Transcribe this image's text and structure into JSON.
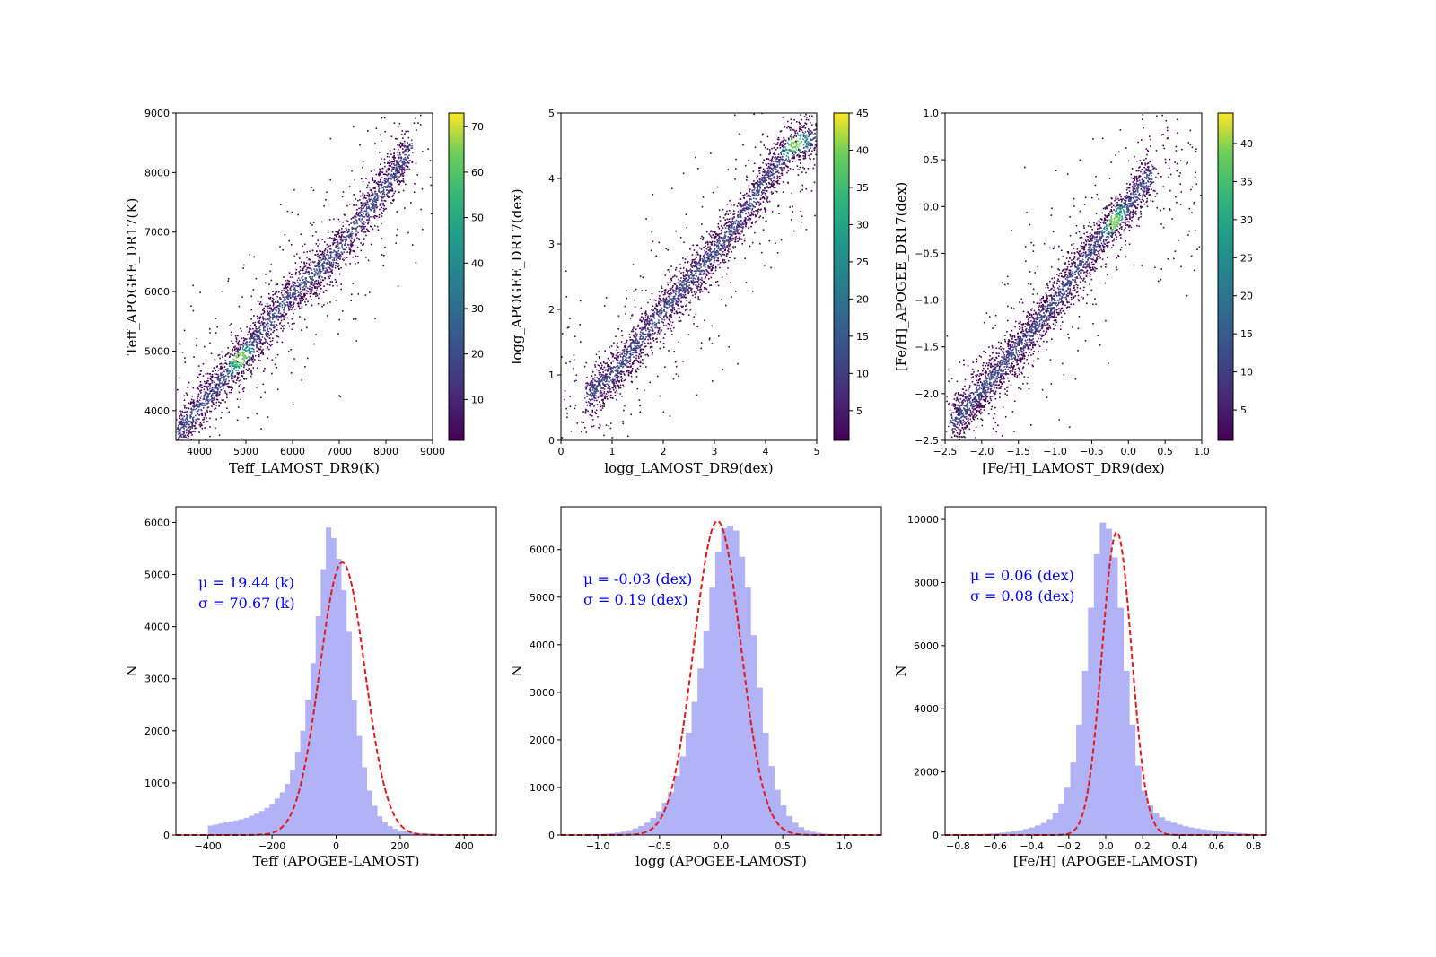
{
  "chart_data": [
    {
      "type": "scatter",
      "subtype": "density-colored scatter (2D histogram)",
      "xlabel": "Teff_LAMOST_DR9(K)",
      "ylabel": "Teff_APOGEE_DR17(K)",
      "xlim": [
        3500,
        9000
      ],
      "ylim": [
        3500,
        9000
      ],
      "xticks": [
        4000,
        5000,
        6000,
        7000,
        8000,
        9000
      ],
      "yticks": [
        4000,
        5000,
        6000,
        7000,
        8000,
        9000
      ],
      "colormap": "viridis",
      "colorbar_range": [
        1,
        73
      ],
      "colorbar_ticks": [
        10,
        20,
        30,
        40,
        50,
        60,
        70
      ],
      "ridge": {
        "x": [
          3500,
          4500,
          5000,
          5500,
          6000,
          6500,
          7000,
          7500,
          8000,
          8500
        ],
        "y": [
          3600,
          4550,
          5000,
          5500,
          6000,
          6350,
          6700,
          7300,
          7800,
          8400
        ]
      },
      "density_peak": {
        "x": 4850,
        "y": 4900
      },
      "grid": false
    },
    {
      "type": "scatter",
      "subtype": "density-colored scatter (2D histogram)",
      "xlabel": "logg_LAMOST_DR9(dex)",
      "ylabel": "logg_APOGEE_DR17(dex)",
      "xlim": [
        0,
        5
      ],
      "ylim": [
        0,
        5
      ],
      "xticks": [
        0,
        1,
        2,
        3,
        4,
        5
      ],
      "yticks": [
        0,
        1,
        2,
        3,
        4,
        5
      ],
      "colormap": "viridis",
      "colorbar_range": [
        1,
        45
      ],
      "colorbar_ticks": [
        5,
        10,
        15,
        20,
        25,
        30,
        35,
        40,
        45
      ],
      "ridge": {
        "x": [
          0.5,
          1.0,
          1.5,
          2.0,
          2.5,
          3.0,
          3.5,
          4.0,
          4.5,
          5.0
        ],
        "y": [
          0.7,
          1.0,
          1.5,
          2.0,
          2.45,
          2.9,
          3.4,
          4.0,
          4.5,
          4.65
        ]
      },
      "density_peak": {
        "x": 4.55,
        "y": 4.55
      },
      "grid": false
    },
    {
      "type": "scatter",
      "subtype": "density-colored scatter (2D histogram)",
      "xlabel": "[Fe/H]_LAMOST_DR9(dex)",
      "ylabel": "[Fe/H]_APOGEE_DR17(dex)",
      "xlim": [
        -2.5,
        1.0
      ],
      "ylim": [
        -2.5,
        1.0
      ],
      "xticks": [
        -2.5,
        -2.0,
        -1.5,
        -1.0,
        -0.5,
        0.0,
        0.5,
        1.0
      ],
      "yticks": [
        -2.5,
        -2.0,
        -1.5,
        -1.0,
        -0.5,
        0.0,
        0.5,
        1.0
      ],
      "xticklabels": [
        "−2.5",
        "−2.0",
        "−1.5",
        "−1.0",
        "−0.5",
        "0.0",
        "0.5",
        "1.0"
      ],
      "yticklabels": [
        "−2.5",
        "−2.0",
        "−1.5",
        "−1.0",
        "−0.5",
        "0.0",
        "0.5",
        "1.0"
      ],
      "colormap": "viridis",
      "colorbar_range": [
        1,
        44
      ],
      "colorbar_ticks": [
        5,
        10,
        15,
        20,
        25,
        30,
        35,
        40
      ],
      "ridge": {
        "x": [
          -2.4,
          -2.0,
          -1.5,
          -1.0,
          -0.5,
          0.0,
          0.3
        ],
        "y": [
          -2.3,
          -1.95,
          -1.5,
          -1.0,
          -0.45,
          0.05,
          0.35
        ]
      },
      "density_peak": {
        "x": -0.2,
        "y": -0.15
      },
      "grid": false
    },
    {
      "type": "bar",
      "subtype": "histogram with gaussian fit",
      "xlabel": "Teff (APOGEE-LAMOST)",
      "ylabel": "N",
      "xlim": [
        -500,
        500
      ],
      "ylim": [
        0,
        6300
      ],
      "xticks": [
        -400,
        -200,
        0,
        200,
        400
      ],
      "yticks": [
        0,
        1000,
        2000,
        3000,
        4000,
        5000,
        6000
      ],
      "xticklabels": [
        "−400",
        "−200",
        "0",
        "200",
        "400"
      ],
      "bin_range": [
        -400,
        400
      ],
      "bins": 50,
      "values": [
        180,
        200,
        220,
        240,
        260,
        280,
        300,
        330,
        370,
        410,
        460,
        520,
        600,
        700,
        820,
        980,
        1250,
        1600,
        2000,
        2600,
        3300,
        4200,
        5100,
        5900,
        5700,
        5300,
        4700,
        3900,
        2600,
        1900,
        1300,
        850,
        560,
        360,
        240,
        170,
        120,
        90,
        70,
        55,
        45,
        38,
        32,
        27,
        23,
        20,
        17,
        15,
        13,
        11
      ],
      "fit": {
        "mu": 19.44,
        "sigma": 70.67,
        "peak": 5230
      },
      "annotation": [
        "μ = 19.44 (k)",
        "σ = 70.67 (k)"
      ],
      "grid": false
    },
    {
      "type": "bar",
      "subtype": "histogram with gaussian fit",
      "xlabel": "logg (APOGEE-LAMOST)",
      "ylabel": "N",
      "xlim": [
        -1.3,
        1.3
      ],
      "ylim": [
        0,
        6900
      ],
      "xticks": [
        -1.0,
        -0.5,
        0.0,
        0.5,
        1.0
      ],
      "yticks": [
        0,
        1000,
        2000,
        3000,
        4000,
        5000,
        6000
      ],
      "xticklabels": [
        "−1.0",
        "−0.5",
        "0.0",
        "0.5",
        "1.0"
      ],
      "bin_range": [
        -1.2,
        1.2
      ],
      "bins": 50,
      "values": [
        10,
        12,
        15,
        18,
        22,
        28,
        38,
        50,
        70,
        100,
        140,
        190,
        260,
        360,
        500,
        680,
        900,
        1250,
        1650,
        2150,
        2800,
        3500,
        4300,
        5200,
        5950,
        6450,
        6500,
        6400,
        5850,
        5200,
        4200,
        3100,
        2150,
        1450,
        950,
        620,
        400,
        260,
        165,
        105,
        70,
        48,
        33,
        24,
        18,
        14,
        11,
        9,
        7,
        5
      ],
      "fit": {
        "mu": -0.03,
        "sigma": 0.19,
        "peak": 6600
      },
      "annotation": [
        "μ = -0.03 (dex)",
        "σ = 0.19 (dex)"
      ],
      "grid": false
    },
    {
      "type": "bar",
      "subtype": "histogram with gaussian fit",
      "xlabel": "[Fe/H] (APOGEE-LAMOST)",
      "ylabel": "N",
      "xlim": [
        -0.87,
        0.87
      ],
      "ylim": [
        0,
        10400
      ],
      "xticks": [
        -0.8,
        -0.6,
        -0.4,
        -0.2,
        0.0,
        0.2,
        0.4,
        0.6,
        0.8
      ],
      "yticks": [
        0,
        2000,
        4000,
        6000,
        8000,
        10000
      ],
      "xticklabels": [
        "−0.8",
        "−0.6",
        "−0.4",
        "−0.2",
        "0.0",
        "0.2",
        "0.4",
        "0.6",
        "0.8"
      ],
      "bin_range": [
        -0.8,
        0.8
      ],
      "bins": 50,
      "values": [
        15,
        20,
        25,
        30,
        40,
        50,
        60,
        75,
        95,
        120,
        150,
        190,
        240,
        300,
        380,
        500,
        700,
        1000,
        1500,
        2300,
        3500,
        5200,
        7200,
        8900,
        9900,
        9700,
        8800,
        7200,
        5200,
        3500,
        2200,
        1400,
        950,
        700,
        560,
        460,
        390,
        330,
        280,
        240,
        210,
        180,
        160,
        140,
        120,
        100,
        85,
        70,
        55,
        45
      ],
      "fit": {
        "mu": 0.06,
        "sigma": 0.08,
        "peak": 9600
      },
      "annotation": [
        "μ = 0.06 (dex)",
        "σ = 0.08 (dex)"
      ],
      "grid": false
    }
  ],
  "colors": {
    "hist_bars": "#b2b2f7",
    "fit_line": "#e31a1c",
    "annotation": "#0000ff",
    "scatter_low": "#440154"
  }
}
